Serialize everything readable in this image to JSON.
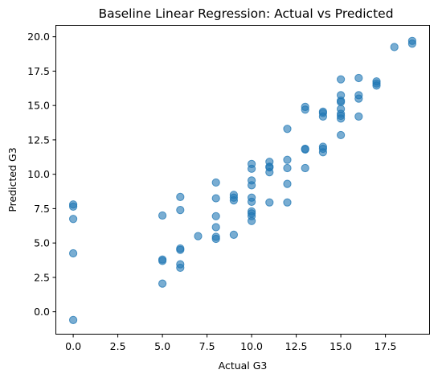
{
  "chart_data": {
    "type": "scatter",
    "title": "Baseline Linear Regression: Actual vs Predicted",
    "xlabel": "Actual G3",
    "ylabel": "Predicted G3",
    "xlim": [
      -0.95,
      19.95
    ],
    "ylim": [
      -1.6,
      20.8
    ],
    "xticks": [
      0,
      2.5,
      5,
      7.5,
      10,
      12.5,
      15,
      17.5
    ],
    "xtick_labels": [
      "0.0",
      "2.5",
      "5.0",
      "7.5",
      "10.0",
      "12.5",
      "15.0",
      "17.5"
    ],
    "yticks": [
      0,
      2.5,
      5,
      7.5,
      10,
      12.5,
      15,
      17.5,
      20
    ],
    "ytick_labels": [
      "0.0",
      "2.5",
      "5.0",
      "7.5",
      "10.0",
      "12.5",
      "15.0",
      "17.5",
      "20.0"
    ],
    "grid": false,
    "color": "#1f77b4",
    "alpha": 0.6,
    "points": [
      {
        "x": 0,
        "y": 7.8
      },
      {
        "x": 0,
        "y": 7.65
      },
      {
        "x": 0,
        "y": 6.75
      },
      {
        "x": 0,
        "y": 4.25
      },
      {
        "x": 0,
        "y": -0.6
      },
      {
        "x": 5,
        "y": 7.0
      },
      {
        "x": 5,
        "y": 3.8
      },
      {
        "x": 5,
        "y": 3.7
      },
      {
        "x": 5,
        "y": 2.05
      },
      {
        "x": 6,
        "y": 8.35
      },
      {
        "x": 6,
        "y": 7.4
      },
      {
        "x": 6,
        "y": 4.6
      },
      {
        "x": 6,
        "y": 4.5
      },
      {
        "x": 6,
        "y": 3.45
      },
      {
        "x": 6,
        "y": 3.2
      },
      {
        "x": 7,
        "y": 5.5
      },
      {
        "x": 8,
        "y": 9.4
      },
      {
        "x": 8,
        "y": 8.25
      },
      {
        "x": 8,
        "y": 6.95
      },
      {
        "x": 8,
        "y": 6.15
      },
      {
        "x": 8,
        "y": 5.45
      },
      {
        "x": 8,
        "y": 5.3
      },
      {
        "x": 9,
        "y": 8.5
      },
      {
        "x": 9,
        "y": 8.3
      },
      {
        "x": 9,
        "y": 8.1
      },
      {
        "x": 9,
        "y": 5.6
      },
      {
        "x": 10,
        "y": 10.75
      },
      {
        "x": 10,
        "y": 10.4
      },
      {
        "x": 10,
        "y": 9.55
      },
      {
        "x": 10,
        "y": 9.2
      },
      {
        "x": 10,
        "y": 8.3
      },
      {
        "x": 10,
        "y": 8.0
      },
      {
        "x": 10,
        "y": 7.3
      },
      {
        "x": 10,
        "y": 7.15
      },
      {
        "x": 10,
        "y": 6.95
      },
      {
        "x": 10,
        "y": 6.6
      },
      {
        "x": 11,
        "y": 10.9
      },
      {
        "x": 11,
        "y": 10.55
      },
      {
        "x": 11,
        "y": 10.5
      },
      {
        "x": 11,
        "y": 10.15
      },
      {
        "x": 11,
        "y": 7.95
      },
      {
        "x": 12,
        "y": 13.3
      },
      {
        "x": 12,
        "y": 11.05
      },
      {
        "x": 12,
        "y": 10.45
      },
      {
        "x": 12,
        "y": 9.3
      },
      {
        "x": 12,
        "y": 7.95
      },
      {
        "x": 13,
        "y": 14.9
      },
      {
        "x": 13,
        "y": 14.7
      },
      {
        "x": 13,
        "y": 11.85
      },
      {
        "x": 13,
        "y": 11.8
      },
      {
        "x": 13,
        "y": 10.45
      },
      {
        "x": 14,
        "y": 14.55
      },
      {
        "x": 14,
        "y": 14.45
      },
      {
        "x": 14,
        "y": 14.2
      },
      {
        "x": 14,
        "y": 12.0
      },
      {
        "x": 14,
        "y": 11.85
      },
      {
        "x": 14,
        "y": 11.6
      },
      {
        "x": 15,
        "y": 16.9
      },
      {
        "x": 15,
        "y": 15.75
      },
      {
        "x": 15,
        "y": 15.35
      },
      {
        "x": 15,
        "y": 15.25
      },
      {
        "x": 15,
        "y": 14.75
      },
      {
        "x": 15,
        "y": 14.4
      },
      {
        "x": 15,
        "y": 14.25
      },
      {
        "x": 15,
        "y": 14.05
      },
      {
        "x": 15,
        "y": 12.85
      },
      {
        "x": 16,
        "y": 17.0
      },
      {
        "x": 16,
        "y": 15.75
      },
      {
        "x": 16,
        "y": 15.5
      },
      {
        "x": 16,
        "y": 14.2
      },
      {
        "x": 17,
        "y": 16.75
      },
      {
        "x": 17,
        "y": 16.6
      },
      {
        "x": 17,
        "y": 16.45
      },
      {
        "x": 18,
        "y": 19.25
      },
      {
        "x": 19,
        "y": 19.7
      },
      {
        "x": 19,
        "y": 19.5
      }
    ]
  }
}
